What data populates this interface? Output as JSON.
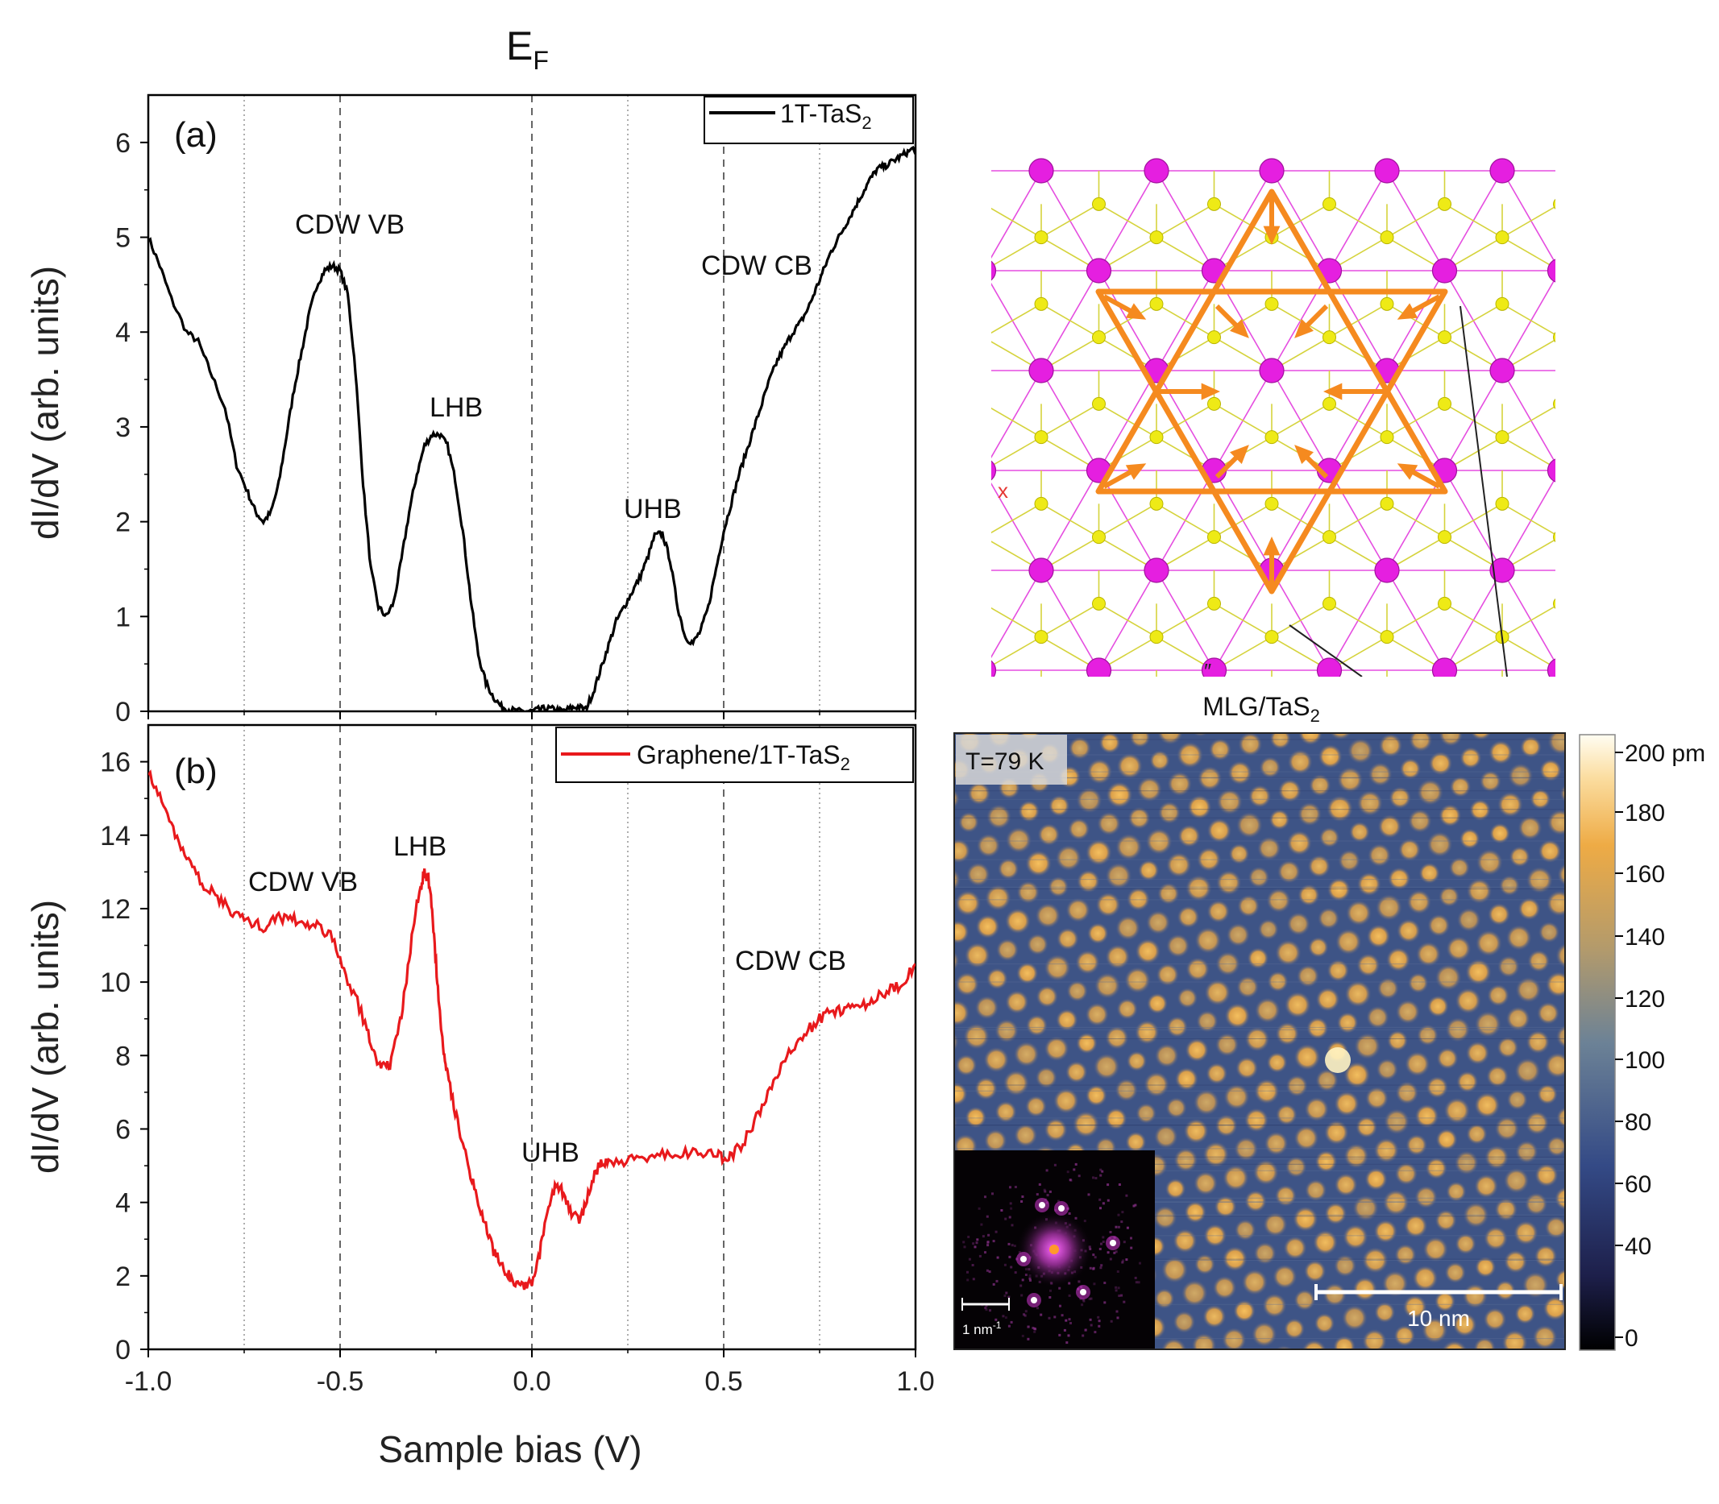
{
  "figure": {
    "ef_label": "E",
    "ef_sub": "F",
    "xlabel": "Sample bias (V)",
    "xticks": [
      "-1.0",
      "-0.5",
      "0.0",
      "0.5",
      "1.0"
    ],
    "inset": {
      "title": "MLG/TaS",
      "title_sub": "2",
      "temperature": "T=79 K",
      "scale_bar": "10 nm",
      "fft_scale_base": "1 nm",
      "fft_scale_sup": "-1",
      "colorbar_labels": [
        "200 pm",
        "180",
        "160",
        "140",
        "120",
        "100",
        "80",
        "60",
        "40",
        "0"
      ]
    },
    "lattice": {
      "x_marker": "x",
      "bottom_mark": "″"
    }
  },
  "chart_data": [
    {
      "type": "line",
      "panel": "(a)",
      "ylabel": "dI/dV (arb. units)",
      "xlim": [
        -1.0,
        1.0
      ],
      "ylim": [
        0,
        6.5
      ],
      "yticks": [
        "0",
        "1",
        "2",
        "3",
        "4",
        "5",
        "6"
      ],
      "series": [
        {
          "name": "1T-TaS",
          "name_sub": "2",
          "color": "#000000",
          "x": [
            -1.0,
            -0.97,
            -0.94,
            -0.9,
            -0.87,
            -0.84,
            -0.8,
            -0.77,
            -0.74,
            -0.72,
            -0.7,
            -0.68,
            -0.66,
            -0.64,
            -0.62,
            -0.6,
            -0.58,
            -0.56,
            -0.54,
            -0.52,
            -0.5,
            -0.48,
            -0.46,
            -0.44,
            -0.42,
            -0.4,
            -0.38,
            -0.36,
            -0.34,
            -0.32,
            -0.3,
            -0.28,
            -0.26,
            -0.24,
            -0.22,
            -0.2,
            -0.18,
            -0.16,
            -0.14,
            -0.12,
            -0.1,
            -0.08,
            -0.06,
            -0.04,
            -0.02,
            0.0,
            0.02,
            0.04,
            0.06,
            0.08,
            0.1,
            0.12,
            0.14,
            0.16,
            0.18,
            0.2,
            0.22,
            0.24,
            0.26,
            0.28,
            0.3,
            0.32,
            0.34,
            0.36,
            0.38,
            0.4,
            0.42,
            0.44,
            0.46,
            0.48,
            0.5,
            0.52,
            0.54,
            0.56,
            0.58,
            0.6,
            0.62,
            0.64,
            0.66,
            0.68,
            0.7,
            0.72,
            0.74,
            0.76,
            0.78,
            0.8,
            0.82,
            0.84,
            0.86,
            0.88,
            0.9,
            0.92,
            0.94,
            0.96,
            0.98,
            1.0
          ],
          "y": [
            5.0,
            4.7,
            4.35,
            4.0,
            3.9,
            3.6,
            3.2,
            2.6,
            2.3,
            2.1,
            2.0,
            2.1,
            2.4,
            2.9,
            3.4,
            3.8,
            4.2,
            4.5,
            4.65,
            4.7,
            4.65,
            4.4,
            3.6,
            2.4,
            1.5,
            1.1,
            1.0,
            1.15,
            1.6,
            2.1,
            2.5,
            2.8,
            2.92,
            2.92,
            2.8,
            2.45,
            1.9,
            1.2,
            0.6,
            0.3,
            0.15,
            0.05,
            0.02,
            0.0,
            0.0,
            0.0,
            0.02,
            0.03,
            0.02,
            0.0,
            0.03,
            0.05,
            0.02,
            0.2,
            0.45,
            0.7,
            0.95,
            1.1,
            1.25,
            1.4,
            1.6,
            1.85,
            1.88,
            1.6,
            1.1,
            0.78,
            0.72,
            0.85,
            1.1,
            1.5,
            1.9,
            2.2,
            2.5,
            2.75,
            3.0,
            3.25,
            3.5,
            3.7,
            3.85,
            4.0,
            4.1,
            4.25,
            4.45,
            4.65,
            4.85,
            5.0,
            5.15,
            5.3,
            5.45,
            5.6,
            5.72,
            5.75,
            5.8,
            5.85,
            5.9,
            5.95
          ]
        }
      ],
      "annotations": [
        "CDW VB",
        "LHB",
        "UHB",
        "CDW CB"
      ]
    },
    {
      "type": "line",
      "panel": "(b)",
      "ylabel": "dI/dV (arb. units)",
      "xlim": [
        -1.0,
        1.0
      ],
      "ylim": [
        0,
        17
      ],
      "yticks": [
        "0",
        "2",
        "4",
        "6",
        "8",
        "10",
        "12",
        "14",
        "16"
      ],
      "series": [
        {
          "name": "Graphene/1T-TaS",
          "name_sub": "2",
          "color": "#e8191c",
          "x": [
            -1.0,
            -0.97,
            -0.94,
            -0.91,
            -0.88,
            -0.85,
            -0.82,
            -0.79,
            -0.76,
            -0.73,
            -0.7,
            -0.67,
            -0.64,
            -0.61,
            -0.58,
            -0.55,
            -0.52,
            -0.49,
            -0.46,
            -0.43,
            -0.41,
            -0.39,
            -0.37,
            -0.35,
            -0.33,
            -0.31,
            -0.29,
            -0.28,
            -0.27,
            -0.26,
            -0.25,
            -0.24,
            -0.23,
            -0.22,
            -0.2,
            -0.18,
            -0.16,
            -0.14,
            -0.12,
            -0.1,
            -0.08,
            -0.06,
            -0.04,
            -0.02,
            0.0,
            0.02,
            0.04,
            0.06,
            0.08,
            0.1,
            0.12,
            0.14,
            0.16,
            0.18,
            0.2,
            0.24,
            0.28,
            0.32,
            0.36,
            0.4,
            0.44,
            0.48,
            0.5,
            0.52,
            0.55,
            0.58,
            0.61,
            0.64,
            0.67,
            0.7,
            0.73,
            0.76,
            0.79,
            0.82,
            0.85,
            0.88,
            0.91,
            0.94,
            0.97,
            1.0
          ],
          "y": [
            15.8,
            15.0,
            14.3,
            13.6,
            13.0,
            12.6,
            12.3,
            12.0,
            11.8,
            11.6,
            11.5,
            11.7,
            11.8,
            11.7,
            11.5,
            11.5,
            11.2,
            10.3,
            9.6,
            8.7,
            8.0,
            7.7,
            7.8,
            8.5,
            9.8,
            11.5,
            12.6,
            13.0,
            12.8,
            12.0,
            10.5,
            9.2,
            8.2,
            7.5,
            6.5,
            5.6,
            4.8,
            4.0,
            3.3,
            2.7,
            2.3,
            2.0,
            1.85,
            1.75,
            1.8,
            2.6,
            3.7,
            4.4,
            4.3,
            3.8,
            3.5,
            3.9,
            4.7,
            5.1,
            5.1,
            5.1,
            5.2,
            5.3,
            5.3,
            5.4,
            5.3,
            5.3,
            5.2,
            5.3,
            5.6,
            6.2,
            6.8,
            7.5,
            8.1,
            8.5,
            8.8,
            9.1,
            9.2,
            9.3,
            9.3,
            9.5,
            9.7,
            9.8,
            10.0,
            10.5
          ]
        }
      ],
      "annotations": [
        "CDW VB",
        "LHB",
        "UHB",
        "CDW CB"
      ]
    }
  ]
}
